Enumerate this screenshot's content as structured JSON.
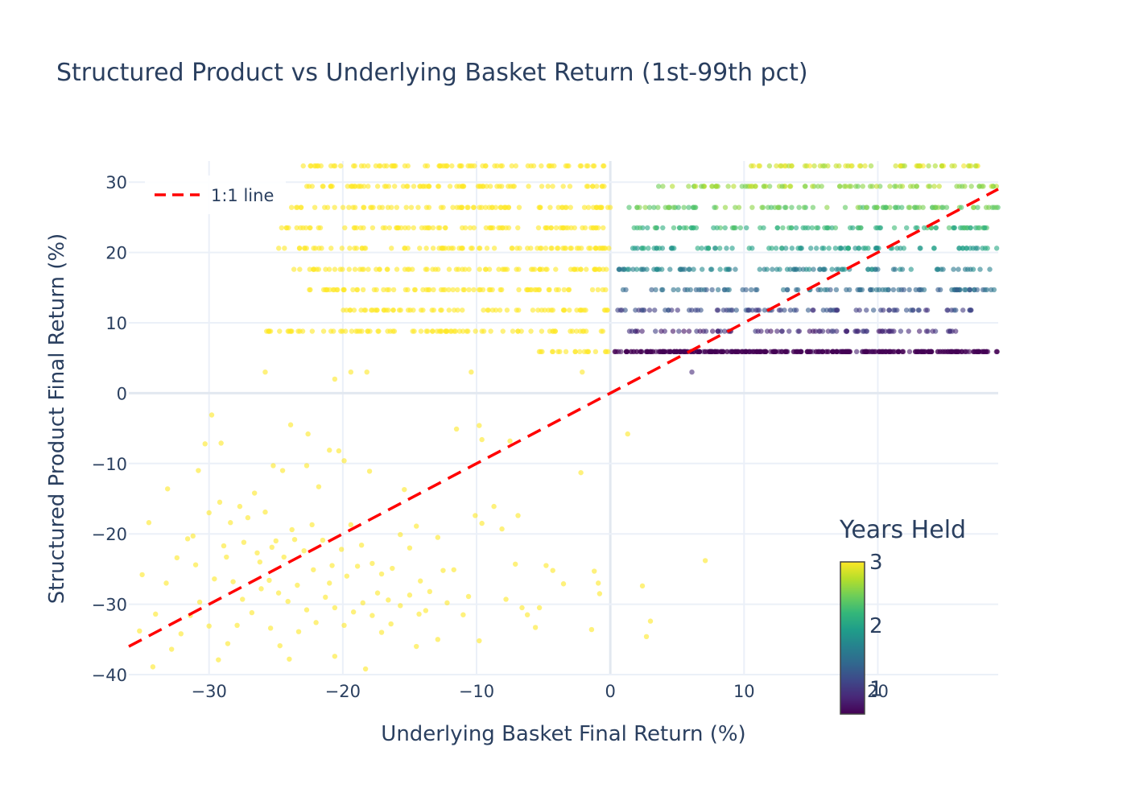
{
  "chart_data": {
    "type": "scatter",
    "title": "Structured Product vs Underlying Basket Return (1st-99th pct)",
    "xlabel": "Underlying Basket Final Return (%)",
    "ylabel": "Structured Product Final Return (%)",
    "xlim": [
      -36,
      29
    ],
    "ylim": [
      -40,
      33
    ],
    "x_ticks": [
      -30,
      -20,
      -10,
      0,
      10,
      20
    ],
    "x_tick_labels": [
      "−30",
      "−20",
      "−10",
      "0",
      "10",
      "20"
    ],
    "y_ticks": [
      -40,
      -30,
      -20,
      -10,
      0,
      10,
      20,
      30
    ],
    "y_tick_labels": [
      "−40",
      "−30",
      "−20",
      "−10",
      "0",
      "10",
      "20",
      "30"
    ],
    "grid": true,
    "legend": {
      "placement": "top-left",
      "entries": [
        "1:1 line"
      ]
    },
    "reference_line": {
      "name": "1:1 line",
      "color": "#ff0000",
      "dash": "dashed",
      "x": [
        -36,
        29
      ],
      "y": [
        -36,
        29
      ]
    },
    "colorbar": {
      "title": "Years Held",
      "ticks": [
        1,
        2,
        3
      ],
      "tick_labels": [
        "1",
        "2",
        "3"
      ],
      "range": [
        0.6,
        3.0
      ],
      "colorscale": [
        "#440154",
        "#482878",
        "#3e4989",
        "#31688e",
        "#26828e",
        "#1f9e89",
        "#35b779",
        "#6ece58",
        "#b5de2b",
        "#fde725"
      ]
    },
    "series": [
      {
        "marker_colorscale": "viridis",
        "color_variable": "Years Held",
        "bands": [
          {
            "y": 5.9,
            "x_range": [
              0.2,
              29
            ],
            "years": 0.6
          },
          {
            "y": 8.8,
            "x_range": [
              0.8,
              26
            ],
            "years": 0.85
          },
          {
            "y": 11.8,
            "x_range": [
              0.4,
              28
            ],
            "years": 1.1
          },
          {
            "y": 14.7,
            "x_range": [
              0.9,
              29
            ],
            "years": 1.4
          },
          {
            "y": 17.6,
            "x_range": [
              0.3,
              29
            ],
            "years": 1.65
          },
          {
            "y": 20.6,
            "x_range": [
              1.6,
              29
            ],
            "years": 1.9
          },
          {
            "y": 23.5,
            "x_range": [
              1.2,
              29
            ],
            "years": 2.15
          },
          {
            "y": 26.4,
            "x_range": [
              1.0,
              29
            ],
            "years": 2.4
          },
          {
            "y": 29.4,
            "x_range": [
              3.5,
              29
            ],
            "years": 2.6
          },
          {
            "y": 32.3,
            "x_range": [
              10,
              28
            ],
            "years": 2.8
          },
          {
            "y": 5.9,
            "x_range": [
              -6,
              0
            ],
            "years": 3.0
          },
          {
            "y": 8.8,
            "x_range": [
              -26,
              0
            ],
            "years": 3.0
          },
          {
            "y": 11.8,
            "x_range": [
              -20,
              0
            ],
            "years": 3.0
          },
          {
            "y": 14.7,
            "x_range": [
              -22.5,
              0
            ],
            "years": 3.0
          },
          {
            "y": 17.6,
            "x_range": [
              -24,
              0
            ],
            "years": 3.0
          },
          {
            "y": 20.6,
            "x_range": [
              -25,
              0
            ],
            "years": 3.0
          },
          {
            "y": 23.5,
            "x_range": [
              -25,
              0
            ],
            "years": 3.0
          },
          {
            "y": 26.4,
            "x_range": [
              -24,
              0
            ],
            "years": 3.0
          },
          {
            "y": 29.4,
            "x_range": [
              -23,
              0
            ],
            "years": 3.0
          },
          {
            "y": 32.3,
            "x_range": [
              -23,
              0
            ],
            "years": 3.0
          }
        ],
        "sparse_points": [
          [
            -25.8,
            3.0
          ],
          [
            -20.6,
            2.0
          ],
          [
            -19.4,
            3.0
          ],
          [
            -18.2,
            3.0
          ],
          [
            -10.4,
            3.0
          ],
          [
            -2.1,
            3.0
          ],
          [
            6.1,
            3.0
          ],
          [
            1.3,
            -5.8
          ],
          [
            -2.2,
            -11.3
          ],
          [
            -9.8,
            -4.6
          ],
          [
            -11.5,
            -5.1
          ],
          [
            -7.5,
            -6.8
          ],
          [
            -9.6,
            -6.6
          ],
          [
            -29.8,
            -3.1
          ],
          [
            -30.3,
            -7.2
          ],
          [
            -29.1,
            -7.1
          ],
          [
            -30.8,
            -11.0
          ],
          [
            -23.9,
            -4.5
          ],
          [
            -22.6,
            -5.8
          ],
          [
            -25.2,
            -10.3
          ],
          [
            -24.5,
            -11.0
          ],
          [
            -22.7,
            -10.3
          ],
          [
            -21.0,
            -8.1
          ],
          [
            -20.3,
            -8.2
          ],
          [
            -19.9,
            -9.6
          ],
          [
            -21.8,
            -13.3
          ],
          [
            -18.0,
            -11.1
          ],
          [
            -15.4,
            -13.7
          ],
          [
            -14.5,
            -18.9
          ],
          [
            -12.9,
            -20.5
          ],
          [
            -12.5,
            -25.2
          ],
          [
            -11.7,
            -25.1
          ],
          [
            -10.1,
            -17.4
          ],
          [
            -9.6,
            -18.5
          ],
          [
            -8.7,
            -16.1
          ],
          [
            -8.1,
            -19.3
          ],
          [
            -6.9,
            -17.4
          ],
          [
            -7.1,
            -24.3
          ],
          [
            -4.8,
            -24.5
          ],
          [
            -4.3,
            -25.2
          ],
          [
            -3.5,
            -27.1
          ],
          [
            -1.2,
            -25.3
          ],
          [
            -0.9,
            -27.0
          ],
          [
            -0.8,
            -28.5
          ],
          [
            -1.4,
            -33.6
          ],
          [
            -5.6,
            -33.3
          ],
          [
            -6.6,
            -30.5
          ],
          [
            -9.8,
            -35.2
          ],
          [
            -12.9,
            -35.0
          ],
          [
            -14.5,
            -36.0
          ],
          [
            -18.3,
            -39.2
          ],
          [
            -20.6,
            -37.4
          ],
          [
            2.4,
            -27.4
          ],
          [
            3.0,
            -32.4
          ],
          [
            2.7,
            -34.6
          ],
          [
            7.1,
            -23.8
          ],
          [
            -35.0,
            -25.8
          ],
          [
            -33.1,
            -13.6
          ],
          [
            -34.5,
            -18.4
          ],
          [
            -32.4,
            -23.4
          ],
          [
            -31.6,
            -20.7
          ],
          [
            -33.2,
            -27.0
          ],
          [
            -34.0,
            -31.4
          ],
          [
            -35.2,
            -33.8
          ],
          [
            -34.2,
            -38.9
          ],
          [
            -32.8,
            -36.4
          ],
          [
            -31.0,
            -24.4
          ],
          [
            -30.0,
            -17.0
          ],
          [
            -29.2,
            -15.5
          ],
          [
            -28.4,
            -18.4
          ],
          [
            -27.7,
            -16.1
          ],
          [
            -27.1,
            -17.7
          ],
          [
            -26.6,
            -14.2
          ],
          [
            -25.8,
            -16.9
          ],
          [
            -25.0,
            -21.0
          ],
          [
            -24.4,
            -23.3
          ],
          [
            -23.6,
            -20.8
          ],
          [
            -22.9,
            -22.4
          ],
          [
            -22.3,
            -18.7
          ],
          [
            -21.5,
            -20.9
          ],
          [
            -20.8,
            -24.5
          ],
          [
            -20.1,
            -22.2
          ],
          [
            -19.4,
            -18.7
          ],
          [
            -18.6,
            -21.6
          ],
          [
            -17.8,
            -24.2
          ],
          [
            -17.1,
            -25.7
          ],
          [
            -16.3,
            -24.9
          ],
          [
            -15.7,
            -20.1
          ],
          [
            -15.0,
            -22.0
          ],
          [
            -14.2,
            -26.7
          ],
          [
            -13.5,
            -28.2
          ],
          [
            -26.2,
            -24.0
          ],
          [
            -25.5,
            -26.6
          ],
          [
            -24.8,
            -28.4
          ],
          [
            -24.1,
            -29.6
          ],
          [
            -23.4,
            -27.3
          ],
          [
            -22.7,
            -30.8
          ],
          [
            -22.0,
            -32.6
          ],
          [
            -21.3,
            -29.0
          ],
          [
            -20.6,
            -30.5
          ],
          [
            -19.9,
            -33.0
          ],
          [
            -19.2,
            -31.1
          ],
          [
            -18.5,
            -29.8
          ],
          [
            -17.8,
            -31.6
          ],
          [
            -17.1,
            -34.0
          ],
          [
            -16.4,
            -32.8
          ],
          [
            -15.7,
            -30.2
          ],
          [
            -15.0,
            -28.7
          ],
          [
            -14.3,
            -31.4
          ],
          [
            -28.9,
            -21.7
          ],
          [
            -28.2,
            -26.8
          ],
          [
            -27.5,
            -29.3
          ],
          [
            -26.8,
            -31.2
          ],
          [
            -26.1,
            -27.8
          ],
          [
            -25.4,
            -33.4
          ],
          [
            -24.7,
            -35.9
          ],
          [
            -24.0,
            -37.8
          ],
          [
            -23.3,
            -33.9
          ],
          [
            -27.9,
            -33.0
          ],
          [
            -28.6,
            -35.6
          ],
          [
            -29.3,
            -37.9
          ],
          [
            -30.0,
            -33.1
          ],
          [
            -30.7,
            -29.7
          ],
          [
            -31.4,
            -31.6
          ],
          [
            -32.1,
            -34.2
          ],
          [
            -29.6,
            -26.4
          ],
          [
            -28.7,
            -23.3
          ],
          [
            -31.2,
            -20.3
          ],
          [
            -27.4,
            -21.2
          ],
          [
            -26.4,
            -22.7
          ],
          [
            -25.3,
            -21.9
          ],
          [
            -23.8,
            -19.4
          ],
          [
            -22.2,
            -25.1
          ],
          [
            -21.0,
            -27.0
          ],
          [
            -19.7,
            -26.0
          ],
          [
            -18.9,
            -24.6
          ],
          [
            -17.4,
            -28.4
          ],
          [
            -16.6,
            -29.4
          ],
          [
            -13.8,
            -30.9
          ],
          [
            -12.2,
            -29.8
          ],
          [
            -11.0,
            -31.5
          ],
          [
            -10.6,
            -28.9
          ],
          [
            -7.8,
            -29.3
          ],
          [
            -6.2,
            -31.5
          ],
          [
            -5.3,
            -30.5
          ]
        ]
      }
    ]
  }
}
